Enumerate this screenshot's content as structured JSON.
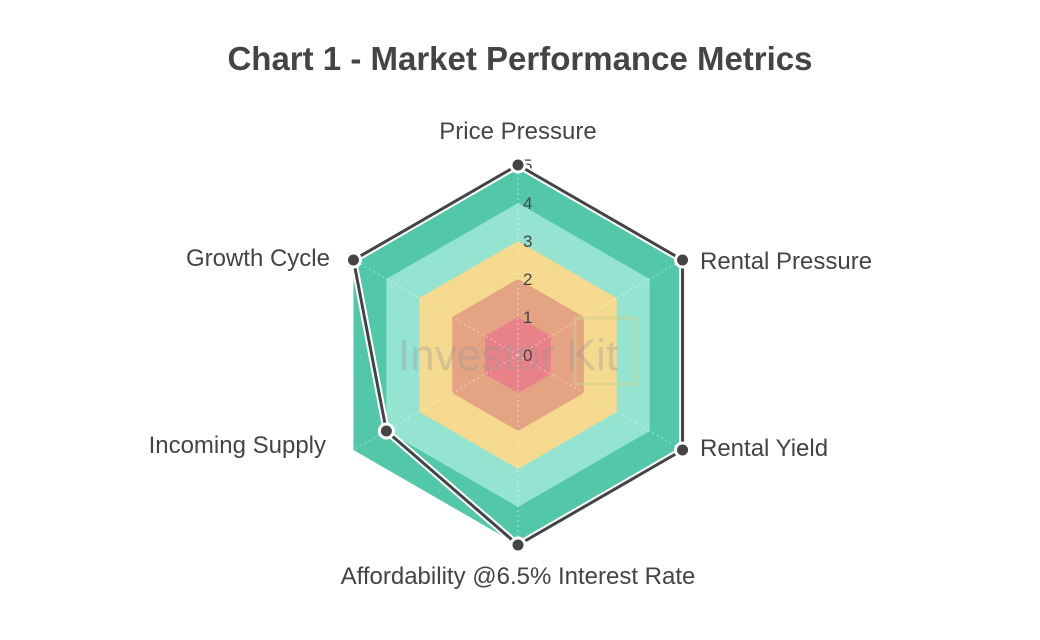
{
  "chart_data": {
    "type": "radar",
    "title": "Chart 1 - Market Performance Metrics",
    "axes": [
      "Price Pressure",
      "Rental Pressure",
      "Rental Yield",
      "Affordability @6.5% Interest Rate",
      "Incoming Supply",
      "Growth Cycle"
    ],
    "values": [
      5,
      5,
      5,
      5,
      4,
      5
    ],
    "range": [
      0,
      5
    ],
    "ticks": [
      "0",
      "1",
      "2",
      "3",
      "4",
      "5"
    ],
    "bands": [
      {
        "from": 0,
        "to": 1,
        "color": "#e98189"
      },
      {
        "from": 1,
        "to": 2,
        "color": "#e4a383"
      },
      {
        "from": 2,
        "to": 3,
        "color": "#f5d98f"
      },
      {
        "from": 3,
        "to": 4,
        "color": "#95e3d1"
      },
      {
        "from": 4,
        "to": 5,
        "color": "#52c7a9"
      }
    ],
    "series_color": "#444444",
    "watermark": "Investor Kit"
  }
}
